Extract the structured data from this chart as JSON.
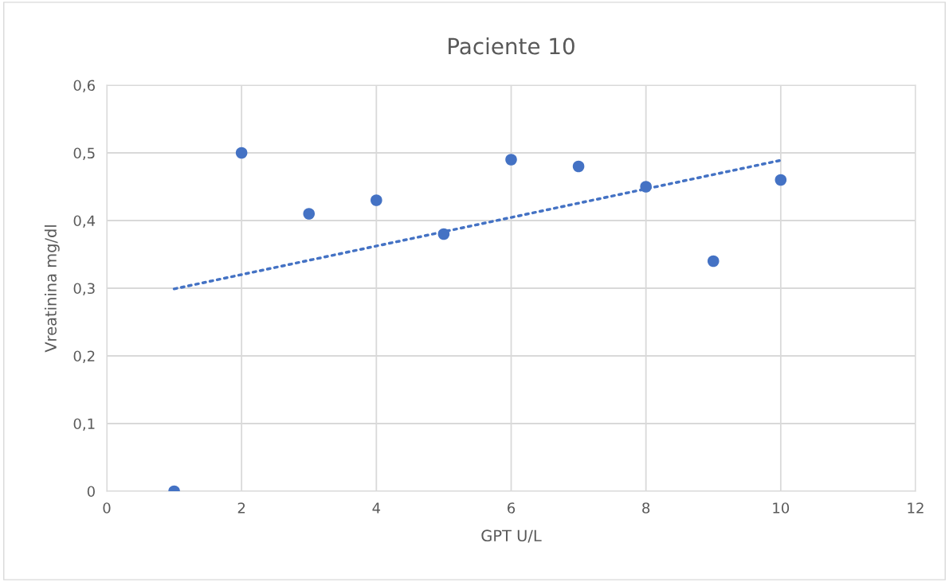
{
  "chart_data": {
    "type": "scatter",
    "title": "Paciente 10",
    "xlabel": "GPT U/L",
    "ylabel": "Vreatinina mg/dl",
    "xlim": [
      0,
      12
    ],
    "xticks": [
      0,
      2,
      4,
      6,
      8,
      10,
      12
    ],
    "ylim": [
      0,
      0.6
    ],
    "yticks": [
      {
        "value": 0,
        "label": "0"
      },
      {
        "value": 0.1,
        "label": "0,1"
      },
      {
        "value": 0.2,
        "label": "0,2"
      },
      {
        "value": 0.3,
        "label": "0,3"
      },
      {
        "value": 0.4,
        "label": "0,4"
      },
      {
        "value": 0.5,
        "label": "0,5"
      },
      {
        "value": 0.6,
        "label": "0,6"
      }
    ],
    "grid": true,
    "series": [
      {
        "color": "#4472c4",
        "marker": "circle",
        "x": [
          1,
          2,
          3,
          4,
          5,
          6,
          7,
          8,
          9,
          10
        ],
        "values": [
          0,
          0.5,
          0.41,
          0.43,
          0.38,
          0.49,
          0.48,
          0.45,
          0.34,
          0.46
        ]
      },
      {
        "type": "line",
        "color": "#4472c4",
        "marker": "none",
        "line_style": "dotted",
        "x": [
          1,
          10
        ],
        "values": [
          0.299,
          0.489
        ]
      }
    ]
  }
}
